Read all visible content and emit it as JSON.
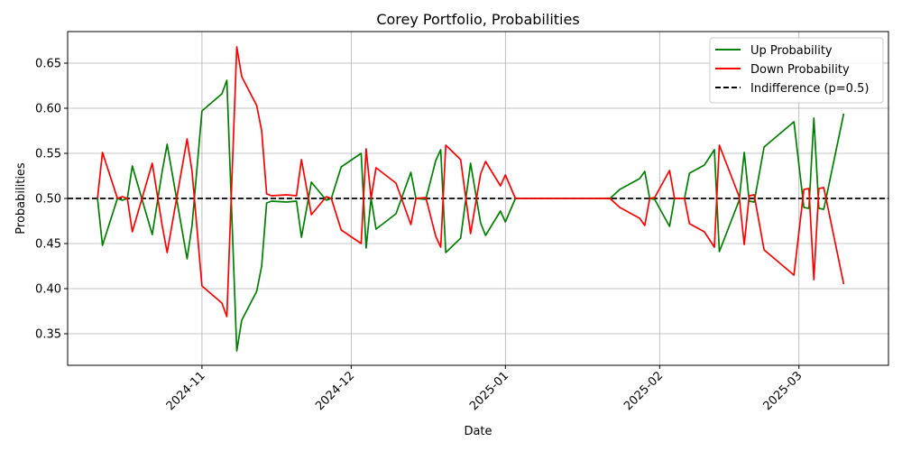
{
  "colors": {
    "up": "#008000",
    "down": "#ff0000",
    "indifference": "#000000",
    "grid": "#b0b0b0"
  },
  "chart_data": {
    "type": "line",
    "title": "Corey Portfolio, Probabilities",
    "xlabel": "Date",
    "ylabel": "Probabilities",
    "xlim": [
      "2024-10-05",
      "2025-03-19"
    ],
    "ylim": [
      0.315,
      0.685
    ],
    "x_ticks": [
      "2024-11",
      "2024-12",
      "2025-01",
      "2025-02",
      "2025-03"
    ],
    "y_ticks": [
      0.35,
      0.4,
      0.45,
      0.5,
      0.55,
      0.6,
      0.65
    ],
    "y_tick_labels": [
      "0.35",
      "0.40",
      "0.45",
      "0.50",
      "0.55",
      "0.60",
      "0.65"
    ],
    "grid": true,
    "legend_position": "upper right",
    "x": [
      "2024-10-11",
      "2024-10-12",
      "2024-10-15",
      "2024-10-16",
      "2024-10-17",
      "2024-10-18",
      "2024-10-22",
      "2024-10-24",
      "2024-10-25",
      "2024-10-29",
      "2024-10-30",
      "2024-11-01",
      "2024-11-05",
      "2024-11-06",
      "2024-11-08",
      "2024-11-09",
      "2024-11-12",
      "2024-11-13",
      "2024-11-14",
      "2024-11-15",
      "2024-11-18",
      "2024-11-20",
      "2024-11-21",
      "2024-11-23",
      "2024-11-26",
      "2024-11-27",
      "2024-11-29",
      "2024-12-03",
      "2024-12-04",
      "2024-12-05",
      "2024-12-06",
      "2024-12-10",
      "2024-12-13",
      "2024-12-14",
      "2024-12-16",
      "2024-12-18",
      "2024-12-19",
      "2024-12-20",
      "2024-12-23",
      "2024-12-25",
      "2024-12-27",
      "2024-12-28",
      "2024-12-31",
      "2025-01-01",
      "2025-01-03",
      "2025-01-04",
      "2025-01-07",
      "2025-01-22",
      "2025-01-24",
      "2025-01-28",
      "2025-01-29",
      "2025-01-30",
      "2025-01-31",
      "2025-02-03",
      "2025-02-04",
      "2025-02-06",
      "2025-02-07",
      "2025-02-10",
      "2025-02-12",
      "2025-02-13",
      "2025-02-17",
      "2025-02-18",
      "2025-02-19",
      "2025-02-20",
      "2025-02-22",
      "2025-02-28",
      "2025-03-02",
      "2025-03-03",
      "2025-03-04",
      "2025-03-05",
      "2025-03-06",
      "2025-03-10"
    ],
    "series": [
      {
        "name": "Up Probability",
        "color": "#008000",
        "values": [
          0.5,
          0.448,
          0.5,
          0.498,
          0.5,
          0.536,
          0.46,
          0.53,
          0.56,
          0.433,
          0.47,
          0.597,
          0.616,
          0.631,
          0.331,
          0.365,
          0.397,
          0.425,
          0.495,
          0.497,
          0.496,
          0.497,
          0.457,
          0.518,
          0.498,
          0.5,
          0.535,
          0.55,
          0.445,
          0.5,
          0.466,
          0.483,
          0.529,
          0.5,
          0.499,
          0.542,
          0.554,
          0.44,
          0.456,
          0.539,
          0.473,
          0.459,
          0.486,
          0.474,
          0.5,
          0.5,
          0.5,
          0.5,
          0.51,
          0.522,
          0.53,
          0.5,
          0.499,
          0.469,
          0.5,
          0.5,
          0.528,
          0.537,
          0.554,
          0.441,
          0.498,
          0.551,
          0.497,
          0.496,
          0.557,
          0.585,
          0.49,
          0.489,
          0.589,
          0.489,
          0.488,
          0.594
        ]
      },
      {
        "name": "Down Probability",
        "color": "#ff0000",
        "values": [
          0.5,
          0.551,
          0.5,
          0.502,
          0.5,
          0.463,
          0.539,
          0.47,
          0.44,
          0.566,
          0.53,
          0.403,
          0.384,
          0.369,
          0.668,
          0.635,
          0.603,
          0.575,
          0.505,
          0.503,
          0.504,
          0.503,
          0.543,
          0.482,
          0.502,
          0.5,
          0.465,
          0.45,
          0.555,
          0.5,
          0.534,
          0.517,
          0.471,
          0.5,
          0.501,
          0.458,
          0.446,
          0.559,
          0.543,
          0.461,
          0.527,
          0.541,
          0.514,
          0.526,
          0.5,
          0.5,
          0.5,
          0.5,
          0.49,
          0.478,
          0.47,
          0.5,
          0.501,
          0.531,
          0.5,
          0.5,
          0.472,
          0.463,
          0.446,
          0.559,
          0.502,
          0.449,
          0.503,
          0.504,
          0.443,
          0.415,
          0.51,
          0.511,
          0.41,
          0.511,
          0.512,
          0.405
        ]
      },
      {
        "name": "Indifference (p=0.5)",
        "color": "#000000",
        "style": "dashed",
        "constant": 0.5
      }
    ]
  }
}
